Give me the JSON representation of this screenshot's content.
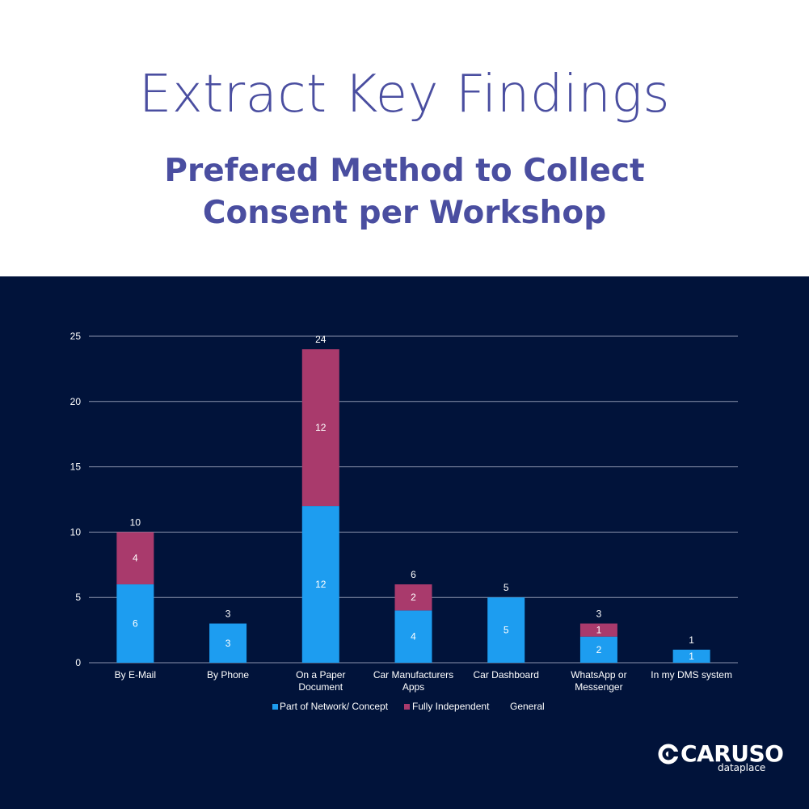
{
  "header": {
    "title": "Extract Key Findings",
    "subtitle_line1": "Prefered Method to Collect",
    "subtitle_line2": "Consent per Workshop"
  },
  "colors": {
    "background": "#01133a",
    "title": "#4a4ea0",
    "part_of_network": "#1d9df0",
    "fully_independent": "#a93a6c",
    "grid": "#8a93ad"
  },
  "chart_data": {
    "type": "bar",
    "stacked": true,
    "categories": [
      [
        "By E-Mail"
      ],
      [
        "By Phone"
      ],
      [
        "On a Paper",
        "Document"
      ],
      [
        "Car Manufacturers",
        "Apps"
      ],
      [
        "Car Dashboard"
      ],
      [
        "WhatsApp or",
        "Messenger"
      ],
      [
        "In my DMS system"
      ]
    ],
    "series": [
      {
        "name": "Part of Network/ Concept",
        "values": [
          6,
          3,
          12,
          4,
          5,
          2,
          1
        ],
        "color": "#1d9df0"
      },
      {
        "name": "Fully Independent",
        "values": [
          4,
          0,
          12,
          2,
          0,
          1,
          0
        ],
        "color": "#a93a6c"
      },
      {
        "name": "General",
        "values": [
          0,
          0,
          0,
          0,
          0,
          0,
          0
        ],
        "color": "#01133a"
      }
    ],
    "totals": [
      10,
      3,
      24,
      6,
      5,
      3,
      1
    ],
    "ylim": [
      0,
      25
    ],
    "yticks": [
      0,
      5,
      10,
      15,
      20,
      25
    ],
    "grid": true,
    "legend_position": "bottom"
  },
  "logo": {
    "word": "CARUSO",
    "sub": "dataplace"
  }
}
